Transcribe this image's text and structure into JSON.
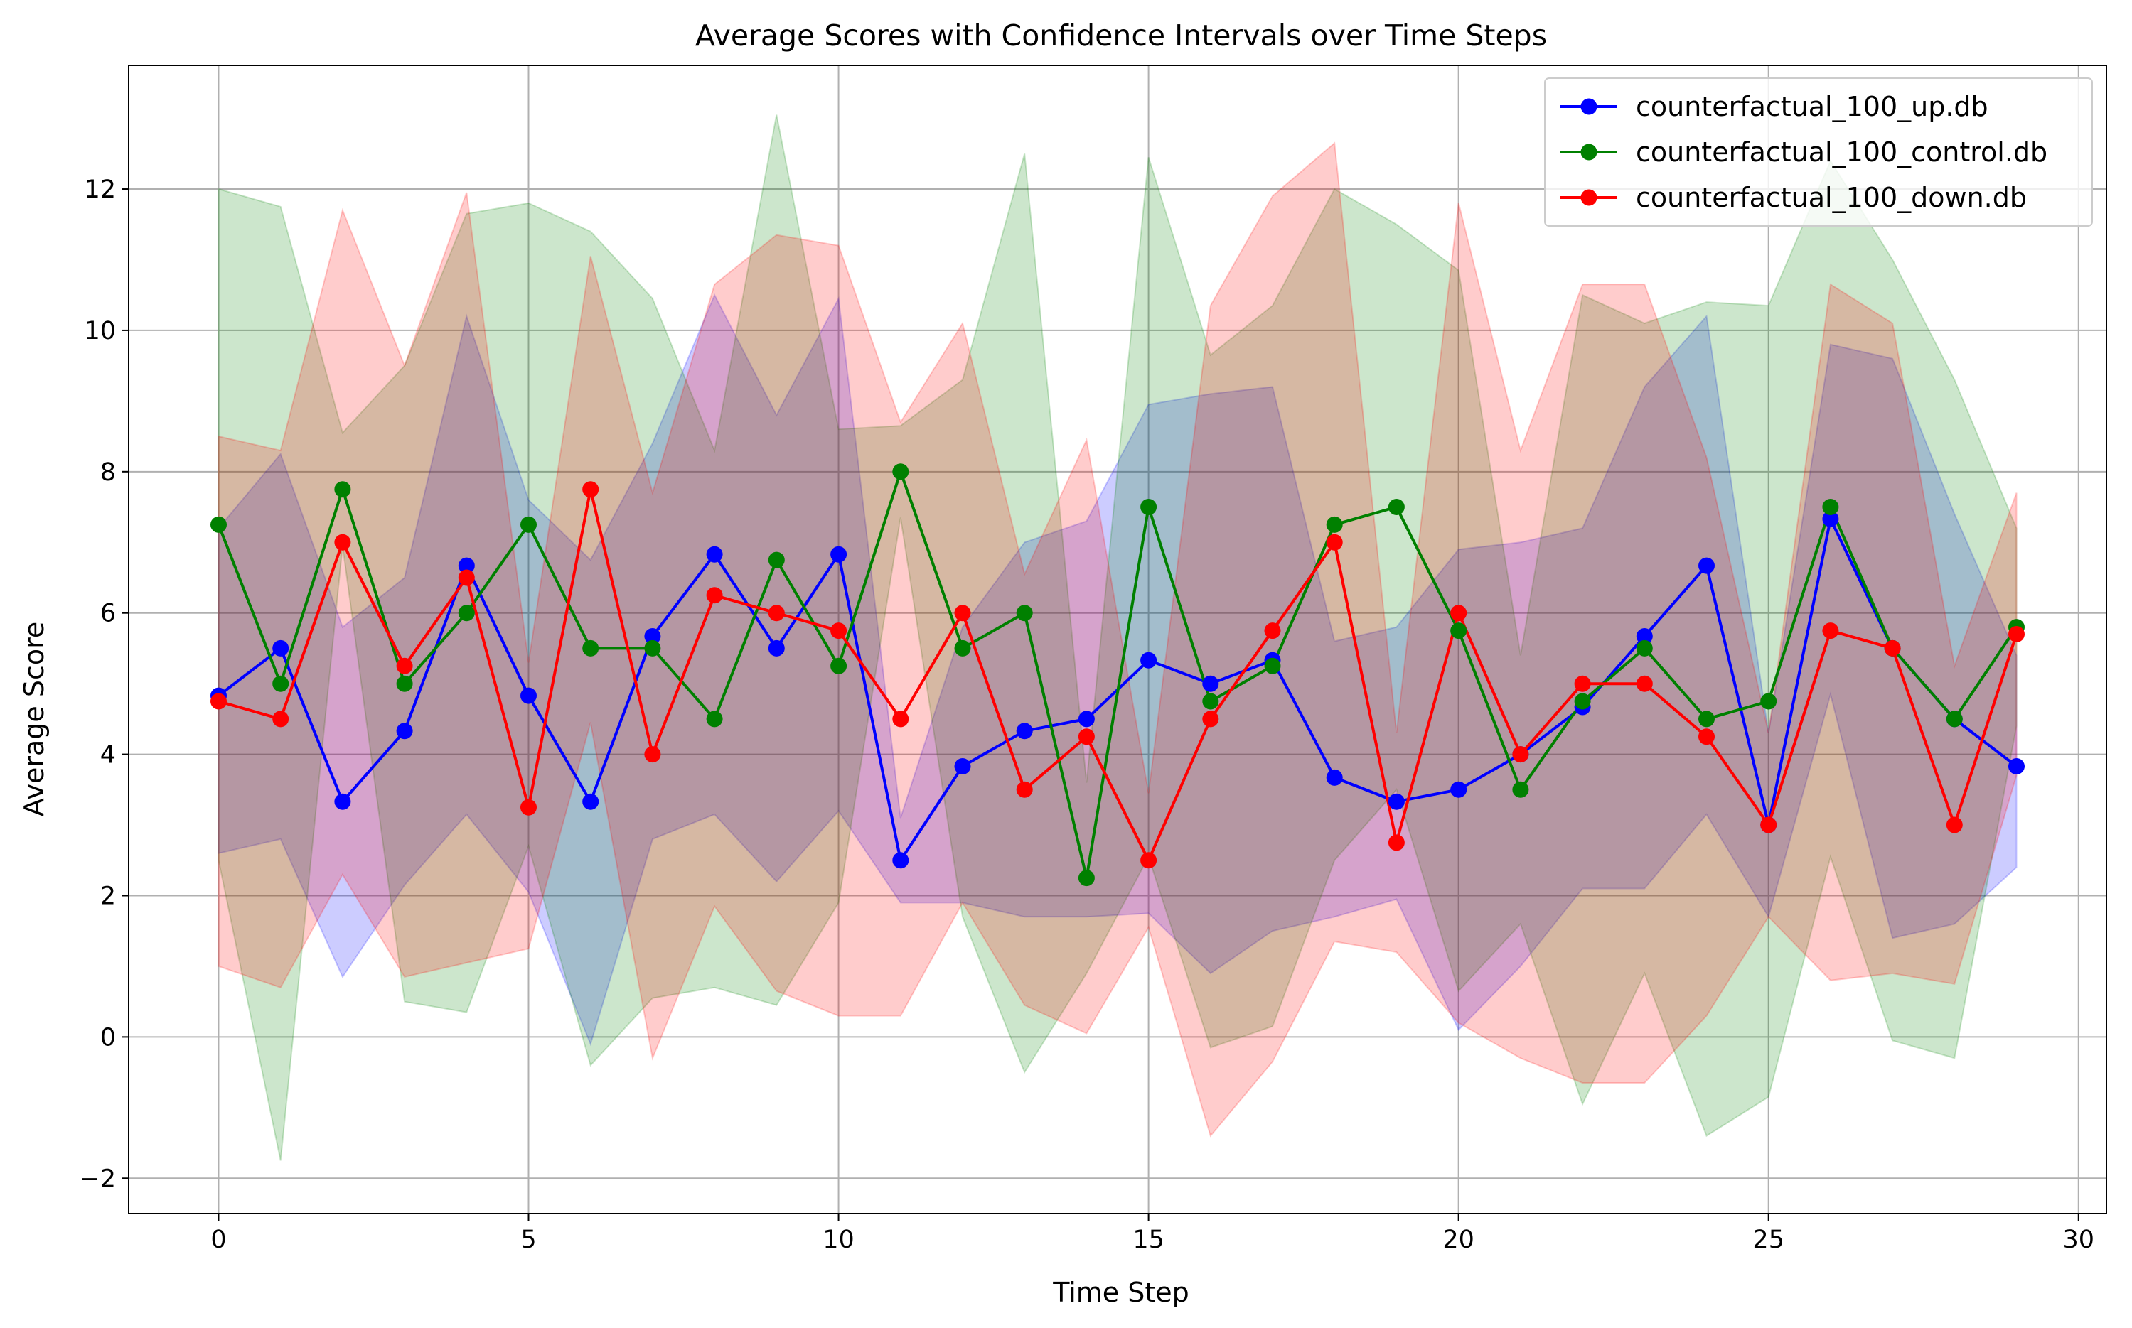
{
  "chart_data": {
    "type": "line",
    "title": "Average Scores with Confidence Intervals over Time Steps",
    "xlabel": "Time Step",
    "ylabel": "Average Score",
    "xlim": [
      -1.45,
      30.45
    ],
    "ylim": [
      -2.5,
      13.75
    ],
    "xticks": [
      0,
      5,
      10,
      15,
      20,
      25,
      30
    ],
    "yticks": [
      -2,
      0,
      2,
      4,
      6,
      8,
      10,
      12
    ],
    "grid": true,
    "legend": "top-right",
    "x": [
      0,
      1,
      2,
      3,
      4,
      5,
      6,
      7,
      8,
      9,
      10,
      11,
      12,
      13,
      14,
      15,
      16,
      17,
      18,
      19,
      20,
      21,
      22,
      23,
      24,
      25,
      26,
      27,
      28,
      29
    ],
    "series": [
      {
        "name": "counterfactual_100_up.db",
        "color": "#0000ff",
        "values": [
          4.83,
          5.5,
          3.33,
          4.33,
          6.67,
          4.83,
          3.33,
          5.67,
          6.83,
          5.5,
          6.83,
          2.5,
          3.83,
          4.33,
          4.5,
          5.33,
          5.0,
          5.33,
          3.67,
          3.33,
          3.5,
          4.0,
          4.67,
          5.67,
          6.67,
          3.0,
          7.33,
          5.5,
          4.5,
          3.83
        ],
        "ci_upper": [
          7.2,
          8.25,
          5.8,
          6.5,
          10.2,
          7.6,
          6.75,
          8.4,
          10.5,
          8.8,
          10.45,
          3.1,
          5.8,
          7.0,
          7.3,
          8.95,
          9.1,
          9.2,
          5.6,
          5.8,
          6.9,
          7.0,
          7.2,
          9.2,
          10.2,
          4.3,
          9.8,
          9.6,
          7.4,
          5.4
        ],
        "ci_lower": [
          2.6,
          2.8,
          0.85,
          2.15,
          3.15,
          2.05,
          -0.1,
          2.8,
          3.15,
          2.2,
          3.2,
          1.9,
          1.9,
          1.7,
          1.7,
          1.75,
          0.9,
          1.5,
          1.7,
          1.95,
          0.1,
          1.0,
          2.1,
          2.1,
          3.15,
          1.7,
          4.85,
          1.4,
          1.6,
          2.4
        ]
      },
      {
        "name": "counterfactual_100_control.db",
        "color": "#008000",
        "values": [
          7.25,
          5.0,
          7.75,
          5.0,
          6.0,
          7.25,
          5.5,
          5.5,
          4.5,
          6.75,
          5.25,
          8.0,
          5.5,
          6.0,
          2.25,
          7.5,
          4.75,
          5.25,
          7.25,
          7.5,
          5.75,
          3.5,
          4.75,
          5.5,
          4.5,
          4.75,
          7.5,
          5.5,
          4.5,
          5.8
        ],
        "ci_upper": [
          12.0,
          11.75,
          8.55,
          9.5,
          11.65,
          11.8,
          11.4,
          10.45,
          8.3,
          13.05,
          8.6,
          8.65,
          9.3,
          12.5,
          3.6,
          12.45,
          9.65,
          10.35,
          12.0,
          11.5,
          10.85,
          5.4,
          10.5,
          10.1,
          10.4,
          10.35,
          12.4,
          11.0,
          9.3,
          7.2
        ],
        "ci_lower": [
          2.5,
          -1.75,
          6.95,
          0.5,
          0.35,
          2.7,
          -0.4,
          0.55,
          0.7,
          0.45,
          1.9,
          7.35,
          1.7,
          -0.5,
          0.9,
          2.55,
          -0.15,
          0.15,
          2.5,
          3.5,
          0.65,
          1.6,
          -0.95,
          0.9,
          -1.4,
          -0.85,
          2.55,
          -0.05,
          -0.3,
          4.4
        ]
      },
      {
        "name": "counterfactual_100_down.db",
        "color": "#ff0000",
        "values": [
          4.75,
          4.5,
          7.0,
          5.25,
          6.5,
          3.25,
          7.75,
          4.0,
          6.25,
          6.0,
          5.75,
          4.5,
          6.0,
          3.5,
          4.25,
          2.5,
          4.5,
          5.75,
          7.0,
          2.75,
          6.0,
          4.0,
          5.0,
          5.0,
          4.25,
          3.0,
          5.75,
          5.5,
          3.0,
          5.7
        ],
        "ci_upper": [
          8.5,
          8.3,
          11.7,
          9.5,
          11.95,
          5.3,
          11.05,
          7.7,
          10.65,
          11.35,
          11.2,
          8.7,
          10.1,
          6.55,
          8.45,
          3.45,
          10.35,
          11.9,
          12.65,
          4.3,
          11.8,
          8.3,
          10.65,
          10.65,
          8.2,
          4.3,
          10.65,
          10.1,
          5.25,
          7.7
        ],
        "ci_lower": [
          1.0,
          0.7,
          2.3,
          0.85,
          1.05,
          1.25,
          4.45,
          -0.3,
          1.85,
          0.65,
          0.3,
          0.3,
          1.9,
          0.45,
          0.05,
          1.55,
          -1.4,
          -0.35,
          1.35,
          1.2,
          0.2,
          -0.3,
          -0.65,
          -0.65,
          0.3,
          1.7,
          0.8,
          0.9,
          0.75,
          3.7
        ]
      }
    ]
  }
}
